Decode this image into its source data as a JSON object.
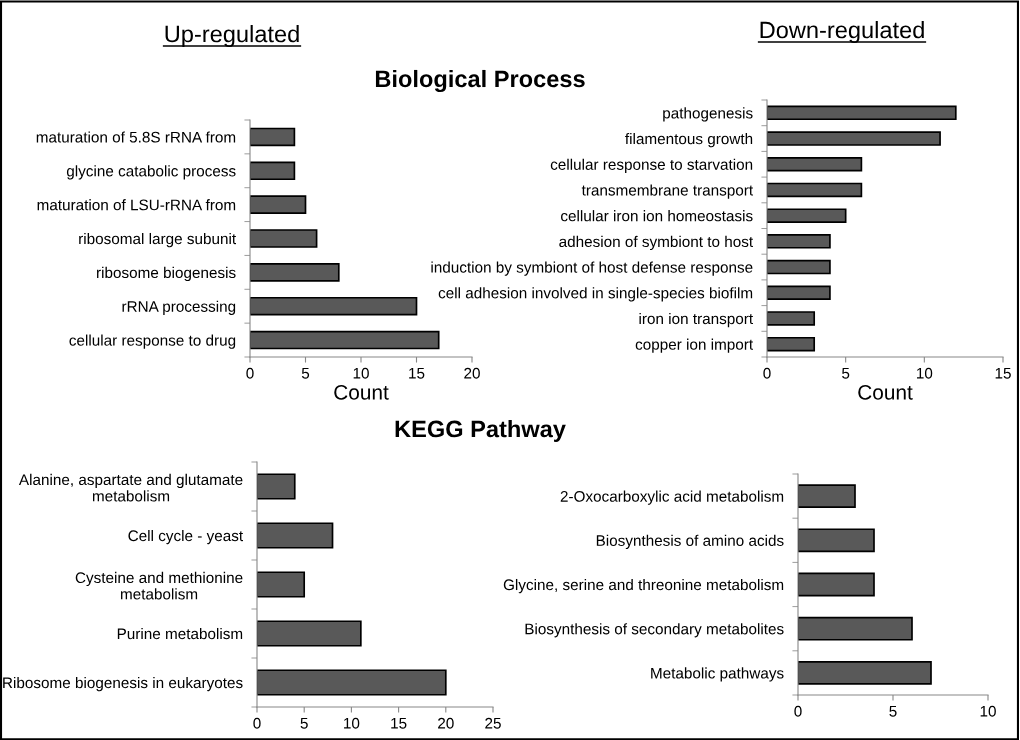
{
  "chart_data": [
    {
      "type": "bar",
      "orientation": "horizontal",
      "title": "Up-regulated",
      "subtitle": "Biological Process",
      "xlabel": "Count",
      "categories": [
        "maturation of 5.8S rRNA from",
        "glycine catabolic process",
        "maturation of LSU-rRNA from",
        "ribosomal large subunit",
        "ribosome biogenesis",
        "rRNA processing",
        "cellular response to drug"
      ],
      "values": [
        4,
        4,
        5,
        6,
        8,
        15,
        17
      ],
      "color": "#595959",
      "xlim": [
        0,
        20
      ],
      "xticks": [
        0,
        5,
        10,
        15,
        20
      ],
      "grid": false,
      "legend": false
    },
    {
      "type": "bar",
      "orientation": "horizontal",
      "title": "Down-regulated",
      "xlabel": "Count",
      "categories": [
        "pathogenesis",
        "filamentous growth",
        "cellular response to starvation",
        "transmembrane transport",
        "cellular iron ion homeostasis",
        "adhesion of symbiont to host",
        "induction by symbiont of host defense response",
        "cell adhesion involved in single-species biofilm",
        "iron ion transport",
        "copper ion import"
      ],
      "values": [
        12,
        11,
        6,
        6,
        5,
        4,
        4,
        4,
        3,
        3
      ],
      "color": "#595959",
      "xlim": [
        0,
        15
      ],
      "xticks": [
        0,
        5,
        10,
        15
      ],
      "grid": false,
      "legend": false
    },
    {
      "type": "bar",
      "orientation": "horizontal",
      "subtitle": "KEGG Pathway",
      "categories": [
        "Alanine, aspartate and glutamate\nmetabolism",
        "Cell cycle - yeast",
        "Cysteine and methionine\nmetabolism",
        "Purine metabolism",
        "Ribosome biogenesis in eukaryotes"
      ],
      "values": [
        4,
        8,
        5,
        11,
        20
      ],
      "color": "#595959",
      "xlim": [
        0,
        25
      ],
      "xticks": [
        0,
        5,
        10,
        15,
        20,
        25
      ],
      "grid": false,
      "legend": false
    },
    {
      "type": "bar",
      "orientation": "horizontal",
      "categories": [
        "2-Oxocarboxylic acid metabolism",
        "Biosynthesis of amino acids",
        "Glycine, serine and threonine metabolism",
        "Biosynthesis of secondary metabolites",
        "Metabolic pathways"
      ],
      "values": [
        3,
        4,
        4,
        6,
        7
      ],
      "color": "#595959",
      "xlim": [
        0,
        10
      ],
      "xticks": [
        0,
        5,
        10
      ],
      "grid": false,
      "legend": false
    }
  ]
}
